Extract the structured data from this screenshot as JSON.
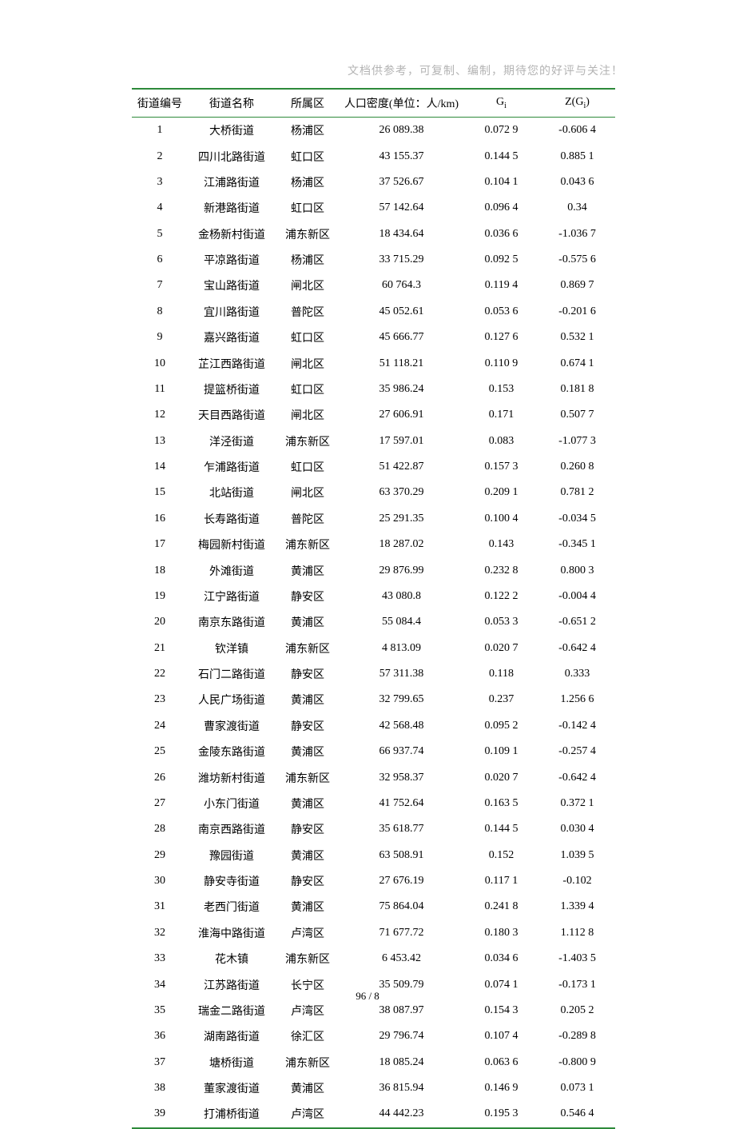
{
  "header_note": "文档供参考，可复制、编制，期待您的好评与关注！",
  "footer": "96 / 8",
  "columns": {
    "id": "街道编号",
    "name": "街道名称",
    "district": "所属区",
    "density": "人口密度(单位：人/km)",
    "gi_prefix": "G",
    "gi_sub": "i",
    "zgi_prefix": "Z(G",
    "zgi_sub": "i",
    "zgi_suffix": ")"
  },
  "rows": [
    {
      "id": "1",
      "name": "大桥街道",
      "district": "杨浦区",
      "density": "26 089.38",
      "gi": "0.072 9",
      "zgi": "-0.606 4"
    },
    {
      "id": "2",
      "name": "四川北路街道",
      "district": "虹口区",
      "density": "43 155.37",
      "gi": "0.144 5",
      "zgi": "0.885 1"
    },
    {
      "id": "3",
      "name": "江浦路街道",
      "district": "杨浦区",
      "density": "37 526.67",
      "gi": "0.104 1",
      "zgi": "0.043 6"
    },
    {
      "id": "4",
      "name": "新港路街道",
      "district": "虹口区",
      "density": "57 142.64",
      "gi": "0.096 4",
      "zgi": "0.34"
    },
    {
      "id": "5",
      "name": "金杨新村街道",
      "district": "浦东新区",
      "density": "18 434.64",
      "gi": "0.036 6",
      "zgi": "-1.036 7"
    },
    {
      "id": "6",
      "name": "平凉路街道",
      "district": "杨浦区",
      "density": "33 715.29",
      "gi": "0.092 5",
      "zgi": "-0.575 6"
    },
    {
      "id": "7",
      "name": "宝山路街道",
      "district": "闸北区",
      "density": "60 764.3",
      "gi": "0.119 4",
      "zgi": "0.869 7"
    },
    {
      "id": "8",
      "name": "宜川路街道",
      "district": "普陀区",
      "density": "45 052.61",
      "gi": "0.053 6",
      "zgi": "-0.201 6"
    },
    {
      "id": "9",
      "name": "嘉兴路街道",
      "district": "虹口区",
      "density": "45 666.77",
      "gi": "0.127 6",
      "zgi": "0.532 1"
    },
    {
      "id": "10",
      "name": "芷江西路街道",
      "district": "闸北区",
      "density": "51 118.21",
      "gi": "0.110 9",
      "zgi": "0.674 1"
    },
    {
      "id": "11",
      "name": "提篮桥街道",
      "district": "虹口区",
      "density": "35 986.24",
      "gi": "0.153",
      "zgi": "0.181 8"
    },
    {
      "id": "12",
      "name": "天目西路街道",
      "district": "闸北区",
      "density": "27 606.91",
      "gi": "0.171",
      "zgi": "0.507 7"
    },
    {
      "id": "13",
      "name": "洋泾街道",
      "district": "浦东新区",
      "density": "17 597.01",
      "gi": "0.083",
      "zgi": "-1.077 3"
    },
    {
      "id": "14",
      "name": "乍浦路街道",
      "district": "虹口区",
      "density": "51 422.87",
      "gi": "0.157 3",
      "zgi": "0.260 8"
    },
    {
      "id": "15",
      "name": "北站街道",
      "district": "闸北区",
      "density": "63 370.29",
      "gi": "0.209 1",
      "zgi": "0.781 2"
    },
    {
      "id": "16",
      "name": "长寿路街道",
      "district": "普陀区",
      "density": "25 291.35",
      "gi": "0.100 4",
      "zgi": "-0.034 5"
    },
    {
      "id": "17",
      "name": "梅园新村街道",
      "district": "浦东新区",
      "density": "18 287.02",
      "gi": "0.143",
      "zgi": "-0.345 1"
    },
    {
      "id": "18",
      "name": "外滩街道",
      "district": "黄浦区",
      "density": "29 876.99",
      "gi": "0.232 8",
      "zgi": "0.800 3"
    },
    {
      "id": "19",
      "name": "江宁路街道",
      "district": "静安区",
      "density": "43 080.8",
      "gi": "0.122 2",
      "zgi": "-0.004 4"
    },
    {
      "id": "20",
      "name": "南京东路街道",
      "district": "黄浦区",
      "density": "55 084.4",
      "gi": "0.053 3",
      "zgi": "-0.651 2"
    },
    {
      "id": "21",
      "name": "钦洋镇",
      "district": "浦东新区",
      "density": "4 813.09",
      "gi": "0.020 7",
      "zgi": "-0.642 4"
    },
    {
      "id": "22",
      "name": "石门二路街道",
      "district": "静安区",
      "density": "57 311.38",
      "gi": "0.118",
      "zgi": "0.333"
    },
    {
      "id": "23",
      "name": "人民广场街道",
      "district": "黄浦区",
      "density": "32 799.65",
      "gi": "0.237",
      "zgi": "1.256 6"
    },
    {
      "id": "24",
      "name": "曹家渡街道",
      "district": "静安区",
      "density": "42 568.48",
      "gi": "0.095 2",
      "zgi": "-0.142 4"
    },
    {
      "id": "25",
      "name": "金陵东路街道",
      "district": "黄浦区",
      "density": "66 937.74",
      "gi": "0.109 1",
      "zgi": "-0.257 4"
    },
    {
      "id": "26",
      "name": "潍坊新村街道",
      "district": "浦东新区",
      "density": "32 958.37",
      "gi": "0.020 7",
      "zgi": "-0.642 4"
    },
    {
      "id": "27",
      "name": "小东门街道",
      "district": "黄浦区",
      "density": "41 752.64",
      "gi": "0.163 5",
      "zgi": "0.372 1"
    },
    {
      "id": "28",
      "name": "南京西路街道",
      "district": "静安区",
      "density": "35 618.77",
      "gi": "0.144 5",
      "zgi": "0.030 4"
    },
    {
      "id": "29",
      "name": "豫园街道",
      "district": "黄浦区",
      "density": "63 508.91",
      "gi": "0.152",
      "zgi": "1.039 5"
    },
    {
      "id": "30",
      "name": "静安寺街道",
      "district": "静安区",
      "density": "27 676.19",
      "gi": "0.117 1",
      "zgi": "-0.102"
    },
    {
      "id": "31",
      "name": "老西门街道",
      "district": "黄浦区",
      "density": "75 864.04",
      "gi": "0.241 8",
      "zgi": "1.339 4"
    },
    {
      "id": "32",
      "name": "淮海中路街道",
      "district": "卢湾区",
      "density": "71 677.72",
      "gi": "0.180 3",
      "zgi": "1.112 8"
    },
    {
      "id": "33",
      "name": "花木镇",
      "district": "浦东新区",
      "density": "6 453.42",
      "gi": "0.034 6",
      "zgi": "-1.403 5"
    },
    {
      "id": "34",
      "name": "江苏路街道",
      "district": "长宁区",
      "density": "35 509.79",
      "gi": "0.074 1",
      "zgi": "-0.173 1"
    },
    {
      "id": "35",
      "name": "瑞金二路街道",
      "district": "卢湾区",
      "density": "38 087.97",
      "gi": "0.154 3",
      "zgi": "0.205 2"
    },
    {
      "id": "36",
      "name": "湖南路街道",
      "district": "徐汇区",
      "density": "29 796.74",
      "gi": "0.107 4",
      "zgi": "-0.289 8"
    },
    {
      "id": "37",
      "name": "塘桥街道",
      "district": "浦东新区",
      "density": "18 085.24",
      "gi": "0.063 6",
      "zgi": "-0.800 9"
    },
    {
      "id": "38",
      "name": "董家渡街道",
      "district": "黄浦区",
      "density": "36 815.94",
      "gi": "0.146 9",
      "zgi": "0.073 1"
    },
    {
      "id": "39",
      "name": "打浦桥街道",
      "district": "卢湾区",
      "density": "44 442.23",
      "gi": "0.195 3",
      "zgi": "0.546 4"
    }
  ]
}
